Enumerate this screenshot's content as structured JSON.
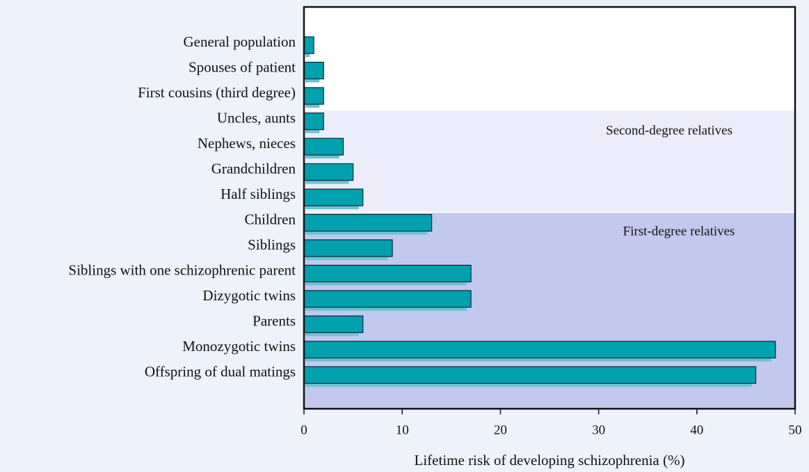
{
  "chart_data": {
    "type": "bar",
    "orientation": "horizontal",
    "categories": [
      "General population",
      "Spouses of patient",
      "First cousins (third degree)",
      "Uncles, aunts",
      "Nephews, nieces",
      "Grandchildren",
      "Half siblings",
      "Children",
      "Siblings",
      "Siblings with one schizophrenic parent",
      "Dizygotic twins",
      "Parents",
      "Monozygotic twins",
      "Offspring of dual matings"
    ],
    "values": [
      1,
      2,
      2,
      2,
      4,
      5,
      6,
      13,
      9,
      17,
      17,
      6,
      48,
      46
    ],
    "color": "#00a0ae",
    "xlim": [
      0,
      50
    ],
    "xticks": [
      0,
      10,
      20,
      30,
      40,
      50
    ],
    "x_label": "Lifetime risk of developing schizophrenia (%)",
    "annotations": [
      "Second-degree relatives",
      "First-degree relatives"
    ]
  }
}
